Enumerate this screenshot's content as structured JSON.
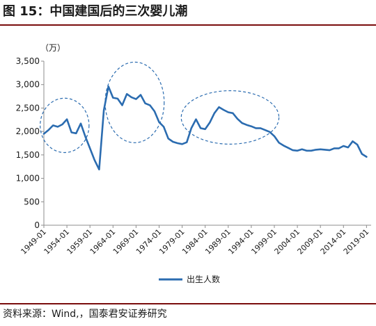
{
  "header": {
    "title": "图 15：中国建国后的三次婴儿潮"
  },
  "footer": {
    "source": "资料来源：Wind,，国泰君安证券研究"
  },
  "chart_data": {
    "type": "line",
    "unit_label": "（万）",
    "x_tick_labels": [
      "1949-01",
      "1954-01",
      "1959-01",
      "1964-01",
      "1969-01",
      "1974-01",
      "1979-01",
      "1984-01",
      "1989-01",
      "1994-01",
      "1999-01",
      "2004-01",
      "2009-01",
      "2014-01",
      "2019-01"
    ],
    "y_ticks": [
      0,
      500,
      1000,
      1500,
      2000,
      2500,
      3000,
      3500
    ],
    "y_tick_labels": [
      "0",
      "500",
      "1,000",
      "1,500",
      "2,000",
      "2,500",
      "3,000",
      "3,500"
    ],
    "ylim": [
      0,
      3500
    ],
    "xlim": [
      1949,
      2020
    ],
    "series": [
      {
        "name": "出生人数",
        "color": "#2b6cb0",
        "x": [
          1949,
          1950,
          1951,
          1952,
          1953,
          1954,
          1955,
          1956,
          1957,
          1958,
          1959,
          1960,
          1961,
          1962,
          1963,
          1964,
          1965,
          1966,
          1967,
          1968,
          1969,
          1970,
          1971,
          1972,
          1973,
          1974,
          1975,
          1976,
          1977,
          1978,
          1979,
          1980,
          1981,
          1982,
          1983,
          1984,
          1985,
          1986,
          1987,
          1988,
          1989,
          1990,
          1991,
          1992,
          1993,
          1994,
          1995,
          1996,
          1997,
          1998,
          1999,
          2000,
          2001,
          2002,
          2003,
          2004,
          2005,
          2006,
          2007,
          2008,
          2009,
          2010,
          2011,
          2012,
          2013,
          2014,
          2015,
          2016,
          2017,
          2018,
          2019
        ],
        "y": [
          1950,
          2030,
          2130,
          2100,
          2150,
          2260,
          1980,
          1960,
          2170,
          1890,
          1640,
          1390,
          1190,
          2450,
          2960,
          2720,
          2700,
          2560,
          2800,
          2730,
          2690,
          2780,
          2600,
          2560,
          2430,
          2200,
          2100,
          1850,
          1780,
          1750,
          1730,
          1770,
          2070,
          2260,
          2070,
          2050,
          2190,
          2390,
          2520,
          2460,
          2410,
          2390,
          2270,
          2180,
          2140,
          2110,
          2070,
          2070,
          2030,
          1990,
          1900,
          1760,
          1700,
          1650,
          1600,
          1590,
          1620,
          1590,
          1590,
          1610,
          1620,
          1610,
          1600,
          1640,
          1640,
          1690,
          1660,
          1790,
          1720,
          1520,
          1460
        ]
      }
    ],
    "annotations": [
      {
        "type": "ellipse",
        "cx": 1953.5,
        "cy": 2130,
        "rx": 5.3,
        "ry": 580
      },
      {
        "type": "ellipse",
        "cx": 1968.7,
        "cy": 2620,
        "rx": 6.4,
        "ry": 860
      },
      {
        "type": "ellipse",
        "cx": 1989.4,
        "cy": 2300,
        "rx": 10.6,
        "ry": 570
      }
    ],
    "grid": false,
    "legend_position": "bottom"
  }
}
